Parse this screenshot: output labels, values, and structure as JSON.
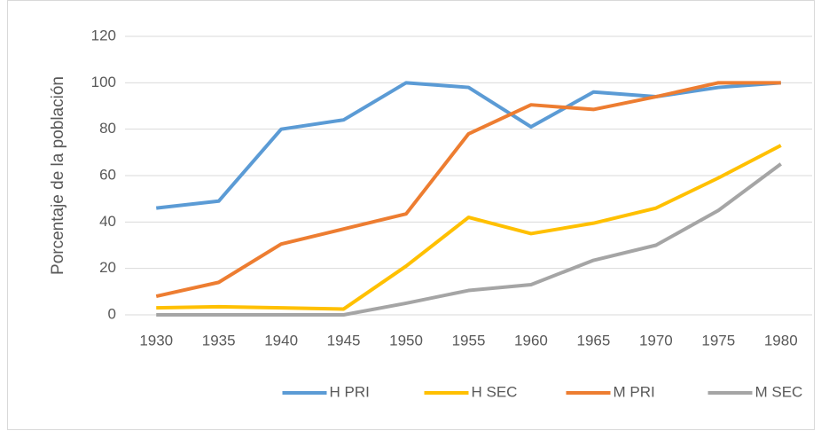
{
  "chart_data": {
    "type": "line",
    "y_label": "Porcentaje de la población",
    "categories": [
      "1930",
      "1935",
      "1940",
      "1945",
      "1950",
      "1955",
      "1960",
      "1965",
      "1970",
      "1975",
      "1980"
    ],
    "series": [
      {
        "name": "H PRI",
        "color": "#5b9bd5",
        "values": [
          46,
          49,
          80,
          84,
          100,
          98,
          81,
          96,
          94,
          98,
          100
        ]
      },
      {
        "name": "H SEC",
        "color": "#ffc000",
        "values": [
          3,
          3.5,
          3,
          2.5,
          21,
          42,
          35,
          39.5,
          46,
          59,
          73
        ]
      },
      {
        "name": "M PRI",
        "color": "#ed7d31",
        "values": [
          8,
          14,
          30.5,
          37,
          43.5,
          78,
          90.5,
          88.5,
          94,
          100,
          100
        ]
      },
      {
        "name": "M SEC",
        "color": "#a5a5a5",
        "values": [
          0,
          0,
          0,
          0,
          5,
          10.5,
          13,
          23.5,
          30,
          45,
          65
        ]
      }
    ],
    "ylim": [
      0,
      120
    ],
    "yticks": [
      0,
      20,
      40,
      60,
      80,
      100,
      120
    ],
    "grid": true,
    "legend": "bottom"
  }
}
